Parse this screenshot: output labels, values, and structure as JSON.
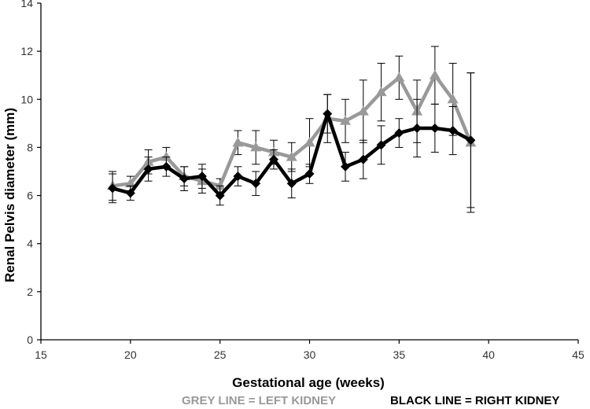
{
  "chart_data": {
    "type": "line",
    "title": "",
    "xlabel": "Gestational age (weeks)",
    "ylabel": "Renal Pelvis diameter (mm)",
    "xlim": [
      15,
      45
    ],
    "ylim": [
      0,
      14
    ],
    "xticks": [
      "15",
      "20",
      "25",
      "30",
      "35",
      "40",
      "45"
    ],
    "yticks": [
      "0",
      "2",
      "4",
      "6",
      "8",
      "10",
      "12",
      "14"
    ],
    "grid": false,
    "series": [
      {
        "name": "Left kidney",
        "color": "#999999",
        "marker": "triangle",
        "x": [
          19,
          20,
          21,
          22,
          23,
          24,
          25,
          26,
          27,
          28,
          29,
          30,
          31,
          32,
          33,
          34,
          35,
          36,
          37,
          38,
          39
        ],
        "y": [
          6.4,
          6.5,
          7.4,
          7.6,
          6.8,
          6.6,
          6.4,
          8.2,
          8.0,
          7.8,
          7.6,
          8.2,
          9.2,
          9.1,
          9.5,
          10.3,
          10.9,
          9.5,
          11.0,
          10.0,
          8.2
        ],
        "err": [
          0.6,
          0.3,
          0.5,
          0.4,
          0.4,
          0.5,
          0.3,
          0.5,
          0.7,
          0.5,
          0.6,
          1.0,
          1.0,
          0.9,
          1.3,
          1.2,
          0.9,
          1.3,
          1.2,
          1.5,
          2.9
        ]
      },
      {
        "name": "Right kidney",
        "color": "#000000",
        "marker": "diamond",
        "x": [
          19,
          20,
          21,
          22,
          23,
          24,
          25,
          26,
          27,
          28,
          29,
          30,
          31,
          32,
          33,
          34,
          35,
          36,
          37,
          38,
          39
        ],
        "y": [
          6.3,
          6.1,
          7.1,
          7.2,
          6.7,
          6.8,
          6.0,
          6.8,
          6.5,
          7.5,
          6.5,
          6.9,
          9.4,
          7.2,
          7.5,
          8.1,
          8.6,
          8.8,
          8.8,
          8.7,
          8.3
        ],
        "err": [
          0.6,
          0.3,
          0.5,
          0.4,
          0.5,
          0.5,
          0.4,
          0.4,
          0.5,
          0.4,
          0.6,
          0.4,
          0.8,
          0.6,
          0.8,
          0.8,
          0.6,
          1.2,
          1.0,
          1.0,
          2.8
        ]
      }
    ],
    "annotations": [
      "GREY LINE = LEFT KIDNEY",
      "BLACK LINE = RIGHT KIDNEY"
    ]
  },
  "legend": {
    "grey": {
      "text": "GREY LINE = LEFT KIDNEY",
      "color": "#999999"
    },
    "black": {
      "text": "BLACK LINE = RIGHT KIDNEY",
      "color": "#000000"
    }
  }
}
